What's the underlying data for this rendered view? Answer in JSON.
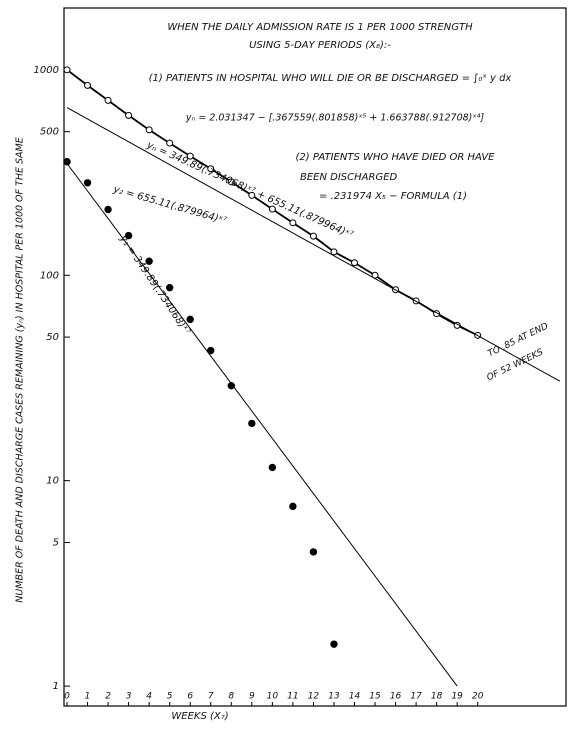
{
  "chart_data": {
    "type": "line",
    "title": "WHEN THE DAILY ADMISSION RATE IS 1 PER 1000 STRENGTH",
    "subtitle": "USING 5-DAY PERIODS (X₈):-",
    "x_label": "WEEKS (X₇)",
    "y_label": "NUMBER OF DEATH AND DISCHARGE CASES REMAINING (yₙ) IN HOSPITAL PER 1000 OF THE SAME",
    "yscale": "log",
    "xlim": [
      0,
      24.3
    ],
    "ylim": [
      0.8,
      2000
    ],
    "xticks": [
      0,
      1,
      2,
      3,
      4,
      5,
      6,
      7,
      8,
      9,
      10,
      11,
      12,
      13,
      14,
      15,
      16,
      17,
      18,
      19,
      20
    ],
    "yticks": [
      1,
      5,
      10,
      50,
      100,
      500,
      1000
    ],
    "grid": false,
    "annotations": [
      "(1) PATIENTS IN HOSPITAL WHO WILL DIE OR BE DISCHARGED = ∫₀ˣ y dx",
      "yₙ = 2.031347 − [.367559(.801858)ˣ⁵ + 1.663788(.912708)ˣ⁴]",
      "(2) PATIENTS WHO HAVE DIED OR HAVE",
      "BEEN DISCHARGED",
      "= .231974 X₅ − FORMULA (1)",
      "yₙ = 349.89(.734068)ˣ⁷ + 655.11(.879964)ˣ⁷",
      "y₂ = 655.11(.879964)ˣ⁷",
      "y₁ = 349.89(.734068)ˣ⁷",
      "TO .85 AT END",
      "OF 52 WEEKS"
    ],
    "series": [
      {
        "marker": "open",
        "line": true,
        "color": "#000000",
        "x": [
          0,
          1,
          2,
          3,
          4,
          5,
          6,
          7,
          8,
          9,
          10,
          11,
          12,
          13,
          14,
          15,
          16,
          17,
          18,
          19,
          20
        ],
        "values": [
          1000,
          840,
          710,
          600,
          510,
          440,
          380,
          330,
          285,
          245,
          210,
          180,
          155,
          130,
          115,
          100,
          85,
          75,
          65,
          57,
          51
        ]
      },
      {
        "marker": "filled",
        "line": false,
        "color": "#000000",
        "x": [
          0,
          1,
          2,
          3,
          4,
          5,
          6,
          7,
          8,
          9,
          10,
          11,
          12,
          13
        ],
        "values": [
          357,
          282,
          209,
          156,
          117,
          87,
          61,
          43,
          29,
          19,
          11.6,
          7.5,
          4.5,
          1.6
        ]
      },
      {
        "marker": "none",
        "line": true,
        "color": "#000000",
        "x": [
          0,
          19
        ],
        "values": [
          350,
          1
        ]
      },
      {
        "marker": "none",
        "line": true,
        "color": "#000000",
        "x": [
          0,
          24
        ],
        "values": [
          655,
          30.5
        ]
      }
    ]
  }
}
